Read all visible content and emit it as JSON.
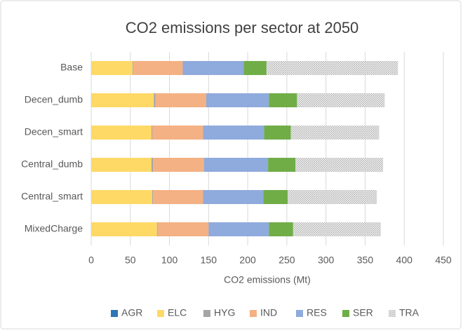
{
  "chart_data": {
    "type": "bar",
    "orientation": "horizontal",
    "stacked": true,
    "title": "CO2 emissions per sector at 2050",
    "x_label": "CO2 emissions (Mt)",
    "categories": [
      "Base",
      "Decen_dumb",
      "Decen_smart",
      "Central_dumb",
      "Central_smart",
      "MixedCharge"
    ],
    "series": [
      {
        "name": "AGR",
        "color": "#2e75b6",
        "values": [
          0,
          0,
          0,
          0,
          0,
          0
        ]
      },
      {
        "name": "ELC",
        "color": "#ffd966",
        "values": [
          53,
          80,
          77,
          77,
          78,
          84
        ]
      },
      {
        "name": "HYG",
        "color": "#a5a5a5",
        "values": [
          1,
          2,
          1,
          2,
          1,
          1
        ]
      },
      {
        "name": "IND",
        "color": "#f4b183",
        "values": [
          63,
          65,
          65,
          65,
          64,
          65
        ]
      },
      {
        "name": "RES",
        "color": "#8faadc",
        "values": [
          78,
          80,
          78,
          82,
          77,
          77
        ]
      },
      {
        "name": "SER",
        "color": "#70ad47",
        "values": [
          29,
          36,
          34,
          35,
          31,
          31
        ]
      },
      {
        "name": "TRA",
        "color": "#a6a6a6",
        "hatch": true,
        "values": [
          168,
          112,
          113,
          112,
          114,
          112
        ]
      }
    ],
    "xlim": [
      0,
      450
    ],
    "xticks": [
      0,
      50,
      100,
      150,
      200,
      250,
      300,
      350,
      400,
      450
    ],
    "grid": true,
    "legend": "bottom"
  }
}
